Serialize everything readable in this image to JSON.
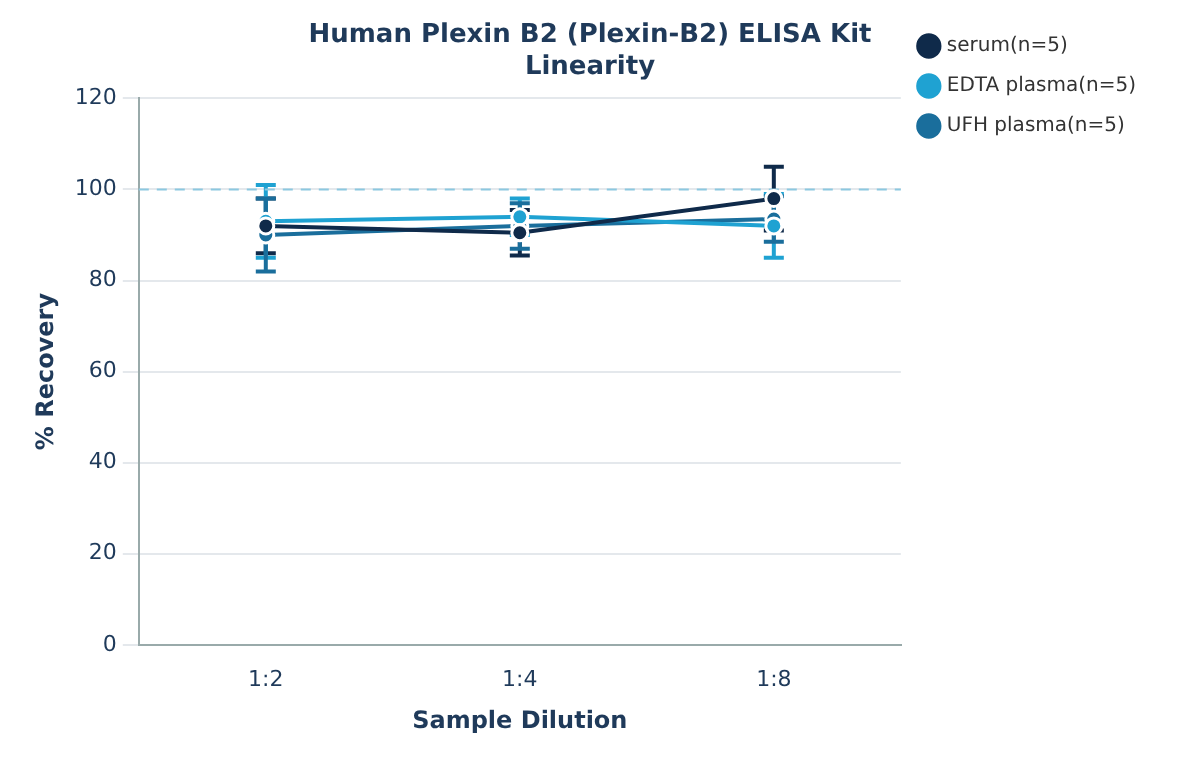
{
  "chart_data": {
    "type": "line",
    "title": "Human Plexin B2 (Plexin-B2) ELISA Kit",
    "subtitle": "Linearity",
    "xlabel": "Sample Dilution",
    "ylabel": "% Recovery",
    "categories": [
      "1:2",
      "1:4",
      "1:8"
    ],
    "series": [
      {
        "name": "serum(n=5)",
        "color": "#0f2a4a",
        "values": [
          92,
          90.5,
          98
        ],
        "errors": [
          6,
          5,
          7
        ]
      },
      {
        "name": "EDTA plasma(n=5)",
        "color": "#1fa2d2",
        "values": [
          93,
          94,
          92
        ],
        "errors": [
          8,
          4,
          7
        ]
      },
      {
        "name": "UFH plasma(n=5)",
        "color": "#1a6e9c",
        "values": [
          90,
          92,
          93.5
        ],
        "errors": [
          8,
          5,
          5
        ]
      }
    ],
    "ylim": [
      0,
      120
    ],
    "yticks": [
      0,
      20,
      40,
      60,
      80,
      100,
      120
    ],
    "grid": "y",
    "legend": "top right",
    "marker": "circle",
    "line_style": "solid",
    "ref_lines": [
      {
        "axis": "y",
        "value": 100,
        "color": "#8cc8e0",
        "line_style": "dashed"
      }
    ]
  }
}
